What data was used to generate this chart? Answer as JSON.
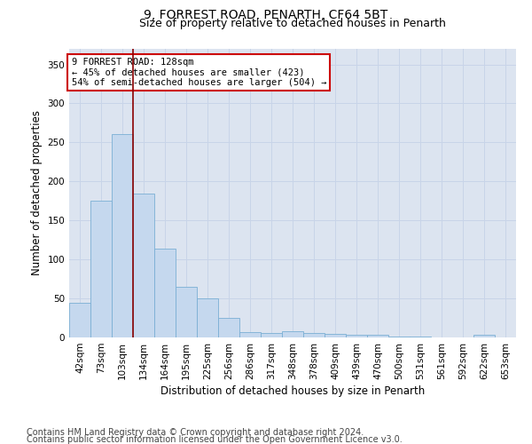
{
  "title1": "9, FORREST ROAD, PENARTH, CF64 5BT",
  "title2": "Size of property relative to detached houses in Penarth",
  "xlabel": "Distribution of detached houses by size in Penarth",
  "ylabel": "Number of detached properties",
  "categories": [
    "42sqm",
    "73sqm",
    "103sqm",
    "134sqm",
    "164sqm",
    "195sqm",
    "225sqm",
    "256sqm",
    "286sqm",
    "317sqm",
    "348sqm",
    "378sqm",
    "409sqm",
    "439sqm",
    "470sqm",
    "500sqm",
    "531sqm",
    "561sqm",
    "592sqm",
    "622sqm",
    "653sqm"
  ],
  "values": [
    44,
    175,
    261,
    184,
    114,
    65,
    50,
    25,
    7,
    6,
    8,
    6,
    5,
    3,
    3,
    1,
    1,
    0,
    0,
    3,
    0
  ],
  "bar_color": "#c5d8ee",
  "bar_edge_color": "#7aafd4",
  "vline_color": "#8b0000",
  "annotation_text": "9 FORREST ROAD: 128sqm\n← 45% of detached houses are smaller (423)\n54% of semi-detached houses are larger (504) →",
  "annotation_box_color": "#ffffff",
  "annotation_box_edge": "#cc0000",
  "grid_color": "#c8d4e8",
  "bg_color": "#dce4f0",
  "ylim": [
    0,
    370
  ],
  "yticks": [
    0,
    50,
    100,
    150,
    200,
    250,
    300,
    350
  ],
  "footer1": "Contains HM Land Registry data © Crown copyright and database right 2024.",
  "footer2": "Contains public sector information licensed under the Open Government Licence v3.0.",
  "title1_fontsize": 10,
  "title2_fontsize": 9,
  "xlabel_fontsize": 8.5,
  "ylabel_fontsize": 8.5,
  "tick_fontsize": 7.5,
  "footer_fontsize": 7,
  "ann_fontsize": 7.5
}
